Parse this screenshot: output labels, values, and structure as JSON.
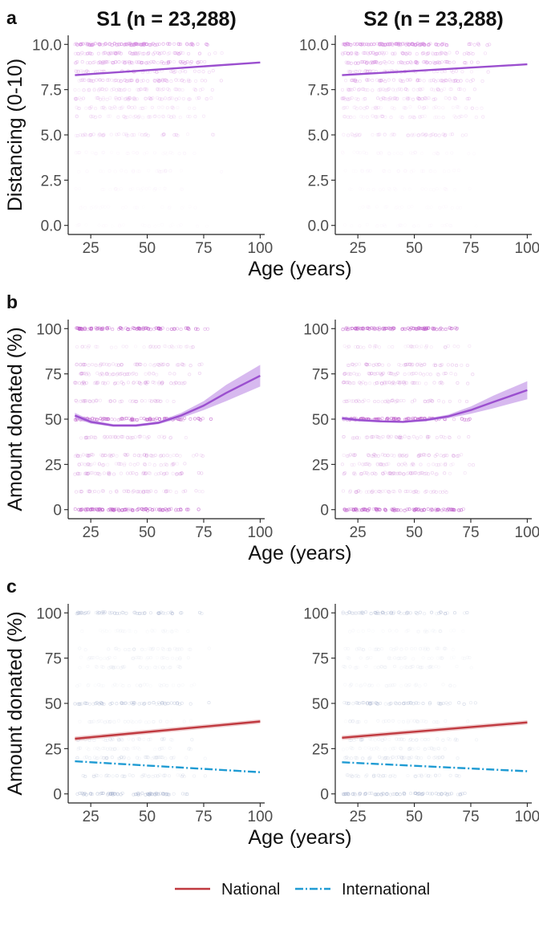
{
  "figure": {
    "column_titles": [
      "S1 (n = 23,288)",
      "S2 (n = 23,288)"
    ],
    "colors": {
      "purple": "#9b4fcf",
      "purple_band": "#c9a2ea",
      "point_purple": "#d58be0",
      "national": "#c0393f",
      "international": "#1f9bd3",
      "axis": "#222222",
      "tick_text": "#4d4d4d"
    }
  },
  "chart_data": [
    {
      "id": "a-S1",
      "panel_label": "a",
      "column": 0,
      "type": "scatter",
      "title": "S1 (n = 23,288)",
      "xlabel": "Age (years)",
      "ylabel": "Distancing (0-10)",
      "xlim": [
        15,
        102
      ],
      "ylim": [
        -0.5,
        10.5
      ],
      "xticks": [
        25,
        50,
        75,
        100
      ],
      "yticks": [
        0,
        2.5,
        5,
        7.5,
        10
      ],
      "ytick_labels": [
        "0.0",
        "2.5",
        "5.0",
        "7.5",
        "10.0"
      ],
      "points": {
        "color": "#d58be0",
        "x_range": [
          18,
          85
        ],
        "levels": [
          10,
          9.5,
          9,
          8.5,
          8,
          7.5,
          7,
          6.5,
          6,
          5,
          4,
          3,
          2,
          1,
          0
        ],
        "opacity": [
          0.9,
          0.55,
          0.6,
          0.4,
          0.5,
          0.35,
          0.4,
          0.25,
          0.25,
          0.3,
          0.1,
          0.08,
          0.06,
          0.05,
          0.05
        ]
      },
      "series": [
        {
          "x": [
            18,
            100
          ],
          "y": [
            8.3,
            9.0
          ],
          "color": "#9b4fcf"
        }
      ]
    },
    {
      "id": "a-S2",
      "panel_label": "",
      "column": 1,
      "type": "scatter",
      "title": "S2 (n = 23,288)",
      "xlabel": "",
      "ylabel": "",
      "xlim": [
        15,
        102
      ],
      "ylim": [
        -0.5,
        10.5
      ],
      "xticks": [
        25,
        50,
        75,
        100
      ],
      "yticks": [
        0,
        2.5,
        5,
        7.5,
        10
      ],
      "ytick_labels": [
        "0.0",
        "2.5",
        "5.0",
        "7.5",
        "10.0"
      ],
      "points": {
        "color": "#d58be0",
        "x_range": [
          18,
          85
        ],
        "levels": [
          10,
          9.5,
          9,
          8.5,
          8,
          7.5,
          7,
          6.5,
          6,
          5,
          4,
          3,
          2,
          1,
          0
        ],
        "opacity": [
          0.9,
          0.55,
          0.6,
          0.4,
          0.5,
          0.35,
          0.4,
          0.25,
          0.25,
          0.3,
          0.1,
          0.08,
          0.06,
          0.05,
          0.05
        ]
      },
      "series": [
        {
          "x": [
            18,
            100
          ],
          "y": [
            8.3,
            8.9
          ],
          "color": "#9b4fcf"
        }
      ]
    },
    {
      "id": "b-S1",
      "panel_label": "b",
      "column": 0,
      "type": "scatter",
      "title": "",
      "xlabel": "Age (years)",
      "ylabel": "Amount donated (%)",
      "xlim": [
        15,
        102
      ],
      "ylim": [
        -5,
        105
      ],
      "xticks": [
        25,
        50,
        75,
        100
      ],
      "yticks": [
        0,
        25,
        50,
        75,
        100
      ],
      "ytick_labels": [
        "0",
        "25",
        "50",
        "75",
        "100"
      ],
      "points": {
        "color": "#c060cc",
        "x_range": [
          18,
          80
        ],
        "levels": [
          100,
          90,
          80,
          75,
          70,
          60,
          50,
          40,
          30,
          25,
          20,
          10,
          0
        ],
        "opacity": [
          0.85,
          0.2,
          0.35,
          0.3,
          0.35,
          0.3,
          0.85,
          0.3,
          0.35,
          0.25,
          0.35,
          0.3,
          0.85
        ]
      },
      "series": [
        {
          "x": [
            18,
            25,
            35,
            45,
            55,
            65,
            75,
            85,
            100
          ],
          "y": [
            52,
            48.5,
            46.5,
            46.5,
            48,
            52,
            57.5,
            64.5,
            74
          ],
          "lower": [
            50.5,
            47.5,
            45.8,
            45.8,
            47.2,
            50.6,
            55,
            60,
            68
          ],
          "upper": [
            53.5,
            49.5,
            47.2,
            47.2,
            48.8,
            53.4,
            60,
            69,
            80
          ],
          "color": "#9b4fcf"
        }
      ]
    },
    {
      "id": "b-S2",
      "panel_label": "",
      "column": 1,
      "type": "scatter",
      "title": "",
      "xlabel": "",
      "ylabel": "",
      "xlim": [
        15,
        102
      ],
      "ylim": [
        -5,
        105
      ],
      "xticks": [
        25,
        50,
        75,
        100
      ],
      "yticks": [
        0,
        25,
        50,
        75,
        100
      ],
      "ytick_labels": [
        "0",
        "25",
        "50",
        "75",
        "100"
      ],
      "points": {
        "color": "#c060cc",
        "x_range": [
          18,
          80
        ],
        "levels": [
          100,
          90,
          80,
          75,
          70,
          60,
          50,
          40,
          30,
          25,
          20,
          10,
          0
        ],
        "opacity": [
          0.85,
          0.2,
          0.35,
          0.3,
          0.35,
          0.3,
          0.85,
          0.3,
          0.35,
          0.25,
          0.35,
          0.3,
          0.85
        ]
      },
      "series": [
        {
          "x": [
            18,
            25,
            35,
            45,
            55,
            65,
            75,
            85,
            100
          ],
          "y": [
            50.5,
            49.5,
            48.8,
            48.5,
            49.5,
            51.5,
            55,
            59.5,
            66
          ],
          "lower": [
            49.5,
            48.8,
            48.2,
            48,
            48.8,
            50.5,
            53,
            56,
            61
          ],
          "upper": [
            51.5,
            50.2,
            49.4,
            49,
            50.2,
            52.5,
            57,
            63,
            71
          ],
          "color": "#9b4fcf"
        }
      ]
    },
    {
      "id": "c-S1",
      "panel_label": "c",
      "column": 0,
      "type": "scatter",
      "title": "",
      "xlabel": "Age (years)",
      "ylabel": "Amount donated (%)",
      "xlim": [
        15,
        102
      ],
      "ylim": [
        -5,
        105
      ],
      "xticks": [
        25,
        50,
        75,
        100
      ],
      "yticks": [
        0,
        25,
        50,
        75,
        100
      ],
      "ytick_labels": [
        "0",
        "25",
        "50",
        "75",
        "100"
      ],
      "points": {
        "color": "#9aa8c8",
        "x_range": [
          18,
          80
        ],
        "levels": [
          100,
          90,
          80,
          75,
          70,
          60,
          50,
          40,
          30,
          25,
          20,
          10,
          0
        ],
        "opacity": [
          0.45,
          0.1,
          0.15,
          0.12,
          0.15,
          0.12,
          0.45,
          0.15,
          0.2,
          0.15,
          0.25,
          0.25,
          0.55
        ]
      },
      "series": [
        {
          "name": "National",
          "x": [
            18,
            100
          ],
          "y": [
            30.5,
            40
          ],
          "band": 1.2,
          "color": "#c0393f",
          "dash": ""
        },
        {
          "name": "International",
          "x": [
            18,
            100
          ],
          "y": [
            18,
            12
          ],
          "band": 0,
          "color": "#1f9bd3",
          "dash": "10 3 2 3"
        }
      ]
    },
    {
      "id": "c-S2",
      "panel_label": "",
      "column": 1,
      "type": "scatter",
      "title": "",
      "xlabel": "",
      "ylabel": "",
      "xlim": [
        15,
        102
      ],
      "ylim": [
        -5,
        105
      ],
      "xticks": [
        25,
        50,
        75,
        100
      ],
      "yticks": [
        0,
        25,
        50,
        75,
        100
      ],
      "ytick_labels": [
        "0",
        "25",
        "50",
        "75",
        "100"
      ],
      "points": {
        "color": "#9aa8c8",
        "x_range": [
          18,
          80
        ],
        "levels": [
          100,
          90,
          80,
          75,
          70,
          60,
          50,
          40,
          30,
          25,
          20,
          10,
          0
        ],
        "opacity": [
          0.45,
          0.1,
          0.15,
          0.12,
          0.15,
          0.12,
          0.45,
          0.15,
          0.2,
          0.15,
          0.25,
          0.25,
          0.55
        ]
      },
      "series": [
        {
          "name": "National",
          "x": [
            18,
            100
          ],
          "y": [
            31,
            39.5
          ],
          "band": 1.2,
          "color": "#c0393f",
          "dash": ""
        },
        {
          "name": "International",
          "x": [
            18,
            100
          ],
          "y": [
            17.5,
            12.5
          ],
          "band": 0,
          "color": "#1f9bd3",
          "dash": "10 3 2 3"
        }
      ]
    }
  ],
  "legend": {
    "placement": "bottom",
    "items": [
      {
        "label": "National",
        "color": "#c0393f",
        "dash": ""
      },
      {
        "label": "International",
        "color": "#1f9bd3",
        "dash": "10 3 2 3"
      }
    ]
  }
}
